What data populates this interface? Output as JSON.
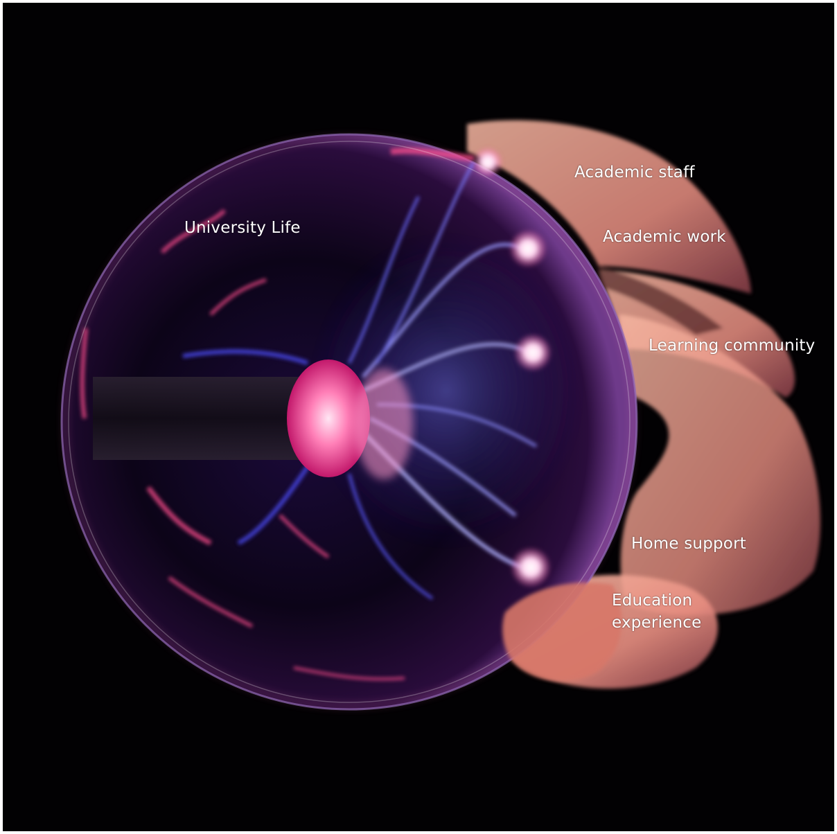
{
  "image": {
    "description_colors": {
      "background": "#020103",
      "plasma_blue": "#5b5bff",
      "plasma_pink": "#ff4d8d",
      "skin": "#f2a48f"
    }
  },
  "labels": {
    "university_life": "University Life",
    "academic_staff": "Academic staff",
    "academic_work": "Academic work",
    "learning_community": "Learning community",
    "home_support": "Home support",
    "education_experience_line1": "Education",
    "education_experience_line2": "experience"
  }
}
